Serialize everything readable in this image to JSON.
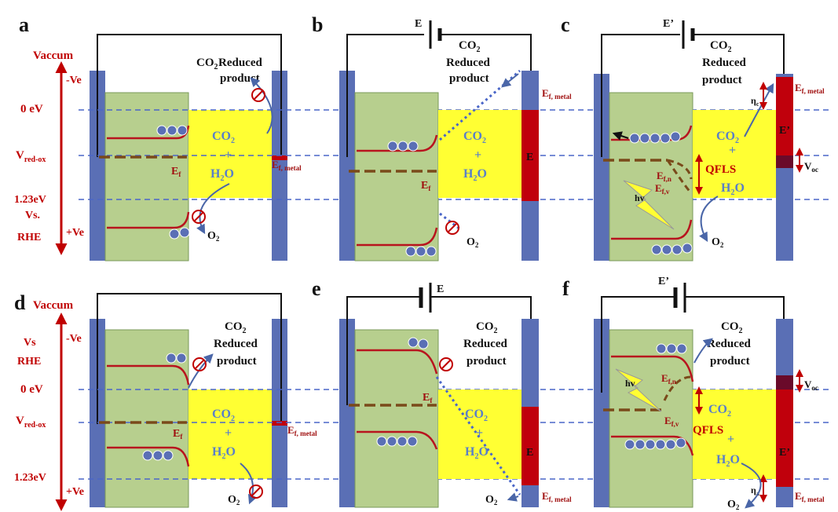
{
  "panels": {
    "a": "a",
    "b": "b",
    "c": "c",
    "d": "d",
    "e": "e",
    "f": "f"
  },
  "axis": {
    "vaccum": "Vaccum",
    "minus_ve": "-Ve",
    "plus_ve": "+Ve",
    "zero_ev": "0 eV",
    "v_redox_main": "V",
    "v_redox_sub": "red-ox",
    "e123": "1.23eV",
    "vs": "Vs.",
    "rhe": "RHE",
    "vs_d": "Vs",
    "rhe_d": "RHE"
  },
  "labels": {
    "co2_main": "CO",
    "co2_sub": "2",
    "reduced": "Reduced",
    "product": "product",
    "plus": "+",
    "h2o": "H",
    "h2o_sub": "2",
    "h2o_o": "O",
    "o2_main": "O",
    "o2_sub": "2",
    "ef_main": "E",
    "ef_sub": "f",
    "ef_metal_sub": "f, metal",
    "efn_sub": "f,n",
    "efv_sub": "f,v",
    "battery_e": "E",
    "battery_ep": "E’",
    "qfls": "QFLS",
    "hv": "hv",
    "voc_main": "V",
    "voc_sub": "oc",
    "eta": "η",
    "eta_c": "c",
    "eta_a": "a"
  },
  "colors": {
    "electrode": "#5a6fb5",
    "semiconductor": "#b7cf8e",
    "electrolyte": "#ffff33",
    "metal": "#c0000c",
    "band": "#b8141e",
    "fermi": "#7a4a1a",
    "dashed": "#4a66c8",
    "label_red": "#a01010",
    "label_blue": "#5a7fc8"
  }
}
